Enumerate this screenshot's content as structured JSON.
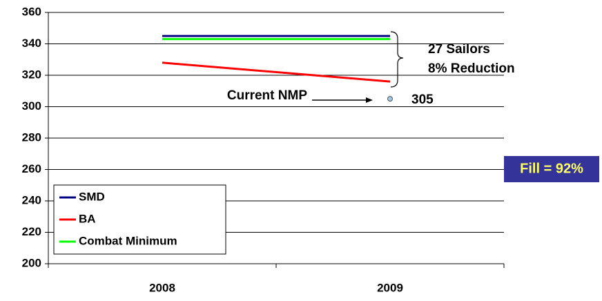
{
  "chart_data": {
    "type": "line",
    "categories": [
      "2008",
      "2009"
    ],
    "series": [
      {
        "name": "SMD",
        "color": "#000080",
        "values": [
          345,
          345
        ]
      },
      {
        "name": "BA",
        "color": "#ff0000",
        "values": [
          328,
          316
        ]
      },
      {
        "name": "Combat Minimum",
        "color": "#00ff00",
        "values": [
          343,
          343
        ]
      }
    ],
    "point": {
      "label": "Current NMP",
      "category": "2009",
      "value": 305,
      "color": "#a8c8d8"
    },
    "annotations": [
      "27 Sailors",
      "8% Reduction"
    ],
    "fill_box": "Fill = 92%",
    "ylim": [
      200,
      360
    ],
    "yticks": [
      200,
      220,
      240,
      260,
      280,
      300,
      320,
      340,
      360
    ],
    "grid": true,
    "legend": "lower left"
  }
}
